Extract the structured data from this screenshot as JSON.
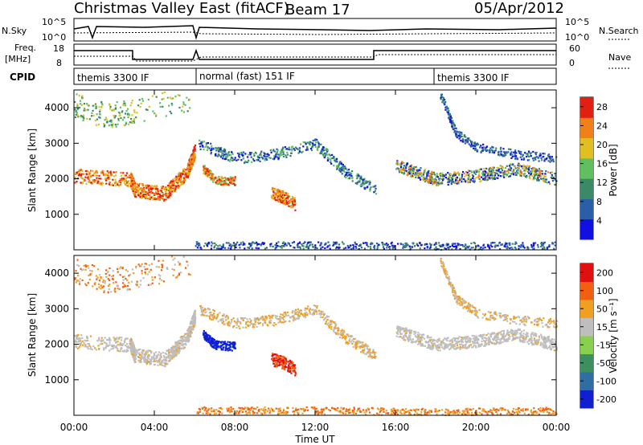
{
  "header": {
    "title": "Christmas Valley East (fitACF)",
    "beam": "Beam 17",
    "date": "05/Apr/2012"
  },
  "aux_panels": {
    "nsky_label": "N.Sky",
    "nsky_ticks_left": [
      "10^5",
      "10^0"
    ],
    "nsky_ticks_right": [
      "10^5",
      "10^0"
    ],
    "nsearch_label": "N.Search",
    "freq_label": "Freq.",
    "freq_unit": "[MHz]",
    "freq_ticks": [
      "18",
      "8"
    ],
    "nave_label": "Nave",
    "nave_ticks": [
      "60",
      "0"
    ],
    "cpid_label": "CPID"
  },
  "chart_data": [
    {
      "type": "heatmap",
      "name": "power-panel",
      "ylabel": "Slant Range [km]",
      "ylim": [
        0,
        4500
      ],
      "yticks": [
        "1000",
        "2000",
        "3000",
        "4000"
      ],
      "colorbar_label": "Power [dB]",
      "colorbar_ticks": [
        "4",
        "8",
        "12",
        "16",
        "20",
        "24",
        "28"
      ],
      "colorscale": [
        "#1010e0",
        "#2a5ea8",
        "#3a8a6a",
        "#60c060",
        "#e0c020",
        "#f08018",
        "#e02010"
      ],
      "xticks": [
        "00:00",
        "04:00",
        "08:00",
        "12:00",
        "16:00",
        "20:00",
        "00:00"
      ]
    },
    {
      "type": "heatmap",
      "name": "velocity-panel",
      "ylabel": "Slant Range [km]",
      "ylim": [
        0,
        4500
      ],
      "yticks": [
        "1000",
        "2000",
        "3000",
        "4000"
      ],
      "colorbar_label": "Velocity [m s⁻¹]",
      "colorbar_ticks": [
        "200",
        "100",
        "50",
        "15",
        "-15",
        "-50",
        "-100",
        "-200"
      ],
      "colorscale": [
        "#1020d0",
        "#2e6ea0",
        "#3c9060",
        "#8ad050",
        "#bebebe",
        "#f0a020",
        "#f06010",
        "#e01010"
      ],
      "xticks": [
        "00:00",
        "04:00",
        "08:00",
        "12:00",
        "16:00",
        "20:00",
        "00:00"
      ],
      "xlabel": "Time UT"
    }
  ],
  "cpid_segments": [
    {
      "label": "themis 3300 IF",
      "start_hour": 0
    },
    {
      "label": "normal (fast) 151 IF",
      "start_hour": 6
    },
    {
      "label": "themis 3300 IF",
      "start_hour": 18
    }
  ]
}
